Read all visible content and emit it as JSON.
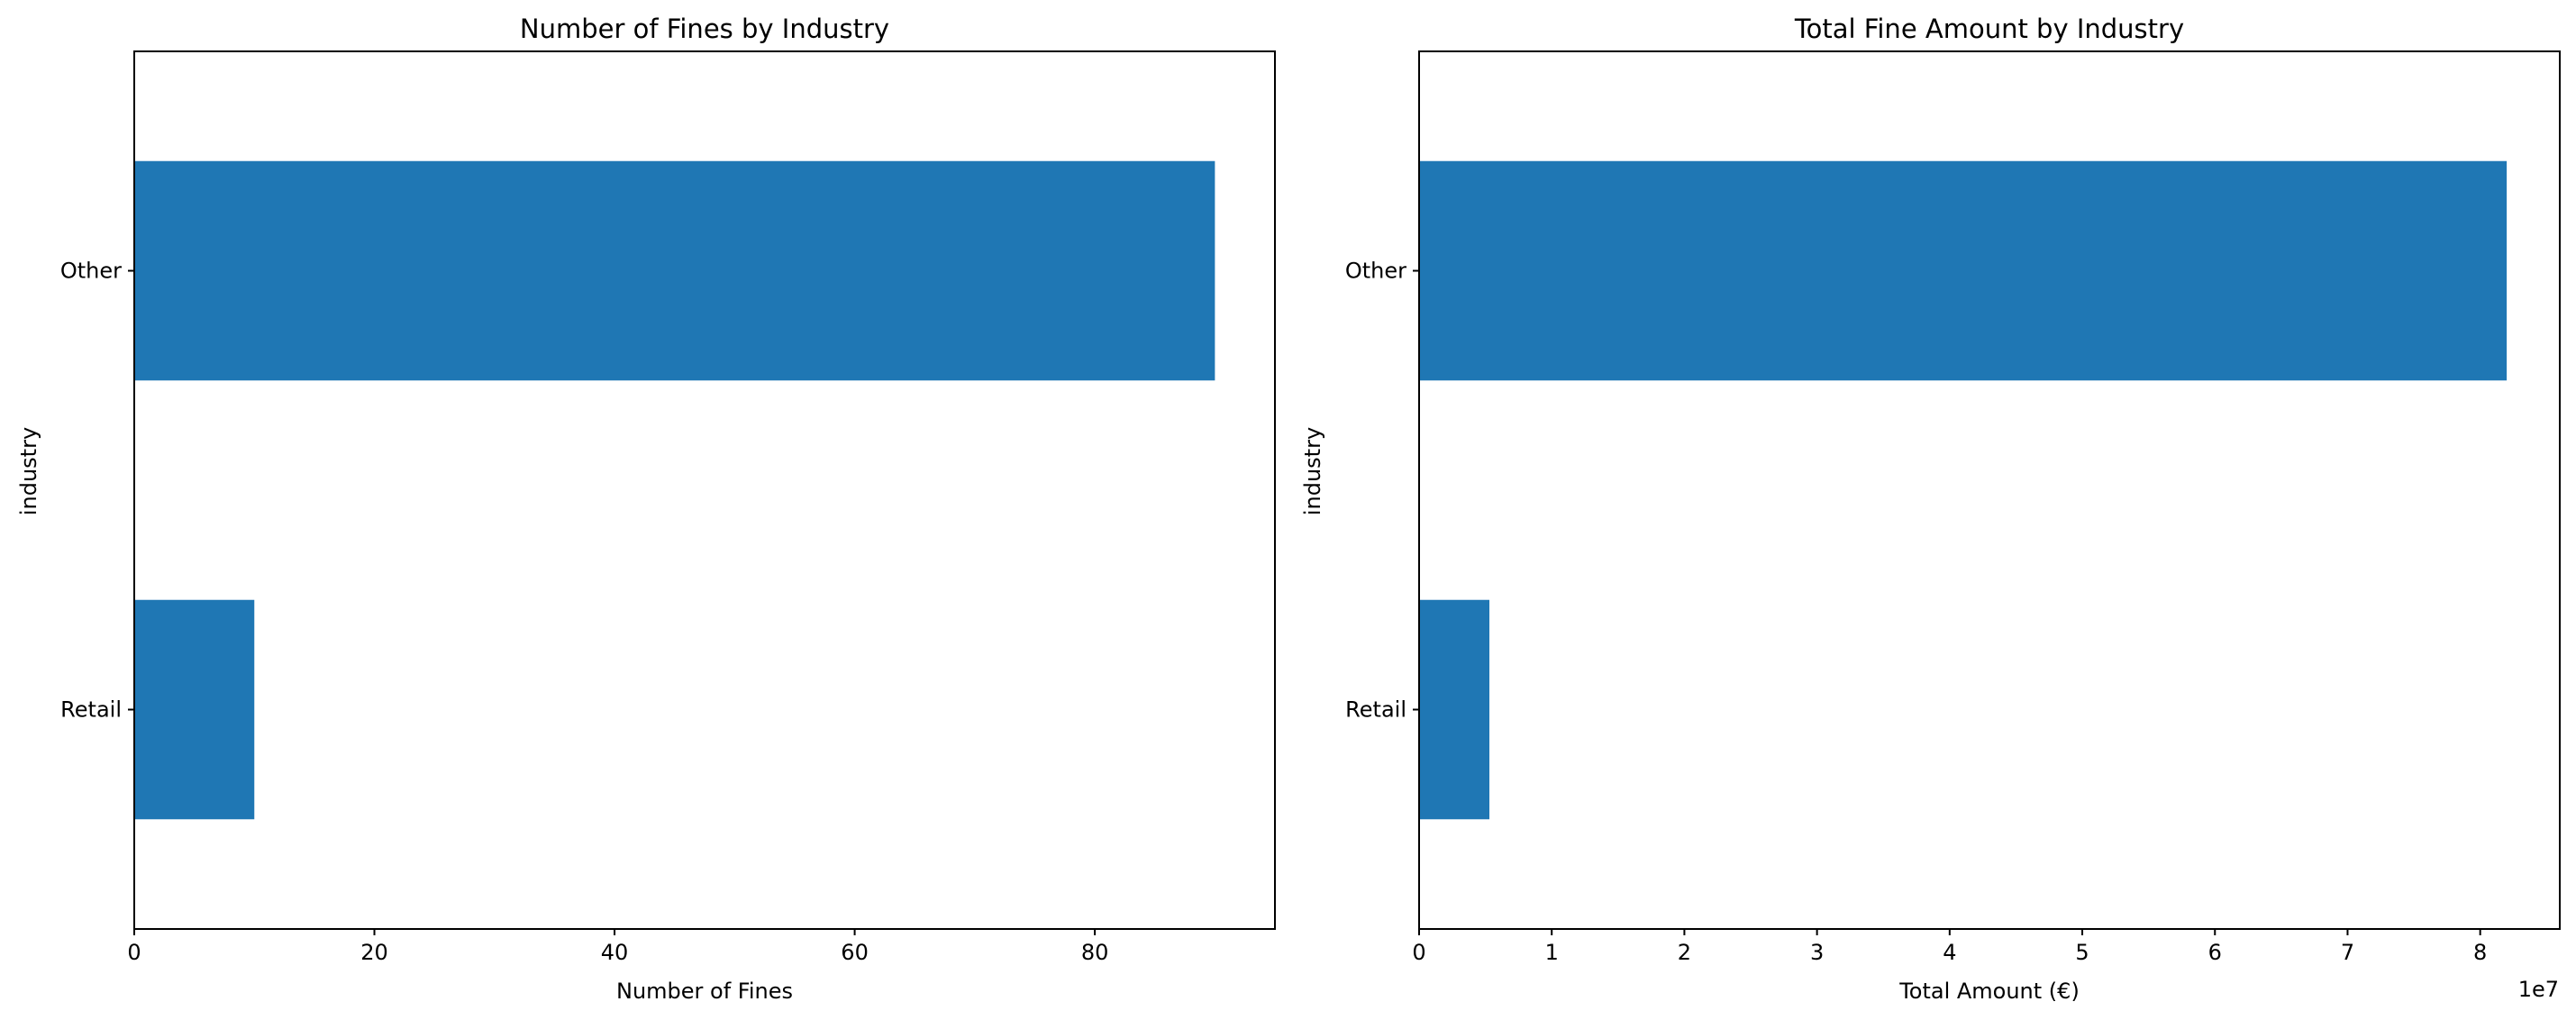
{
  "chart_data": [
    {
      "type": "bar",
      "orientation": "horizontal",
      "title": "Number of Fines by Industry",
      "xlabel": "Number of Fines",
      "ylabel": "industry",
      "categories": [
        "Other",
        "Retail"
      ],
      "values": [
        90,
        10
      ],
      "xlim": [
        0,
        95
      ],
      "xticks": [
        0,
        20,
        40,
        60,
        80
      ],
      "xtick_labels": [
        "0",
        "20",
        "40",
        "60",
        "80"
      ],
      "offset_text": "",
      "bar_color": "#1f77b4",
      "grid": false
    },
    {
      "type": "bar",
      "orientation": "horizontal",
      "title": "Total Fine Amount by Industry",
      "xlabel": "Total Amount (€)",
      "ylabel": "industry",
      "categories": [
        "Other",
        "Retail"
      ],
      "values": [
        82000000,
        5300000
      ],
      "xlim": [
        0,
        86000000
      ],
      "xticks": [
        0,
        10000000,
        20000000,
        30000000,
        40000000,
        50000000,
        60000000,
        70000000,
        80000000
      ],
      "xtick_labels": [
        "0",
        "1",
        "2",
        "3",
        "4",
        "5",
        "6",
        "7",
        "8"
      ],
      "offset_text": "1e7",
      "bar_color": "#1f77b4",
      "grid": false
    }
  ]
}
